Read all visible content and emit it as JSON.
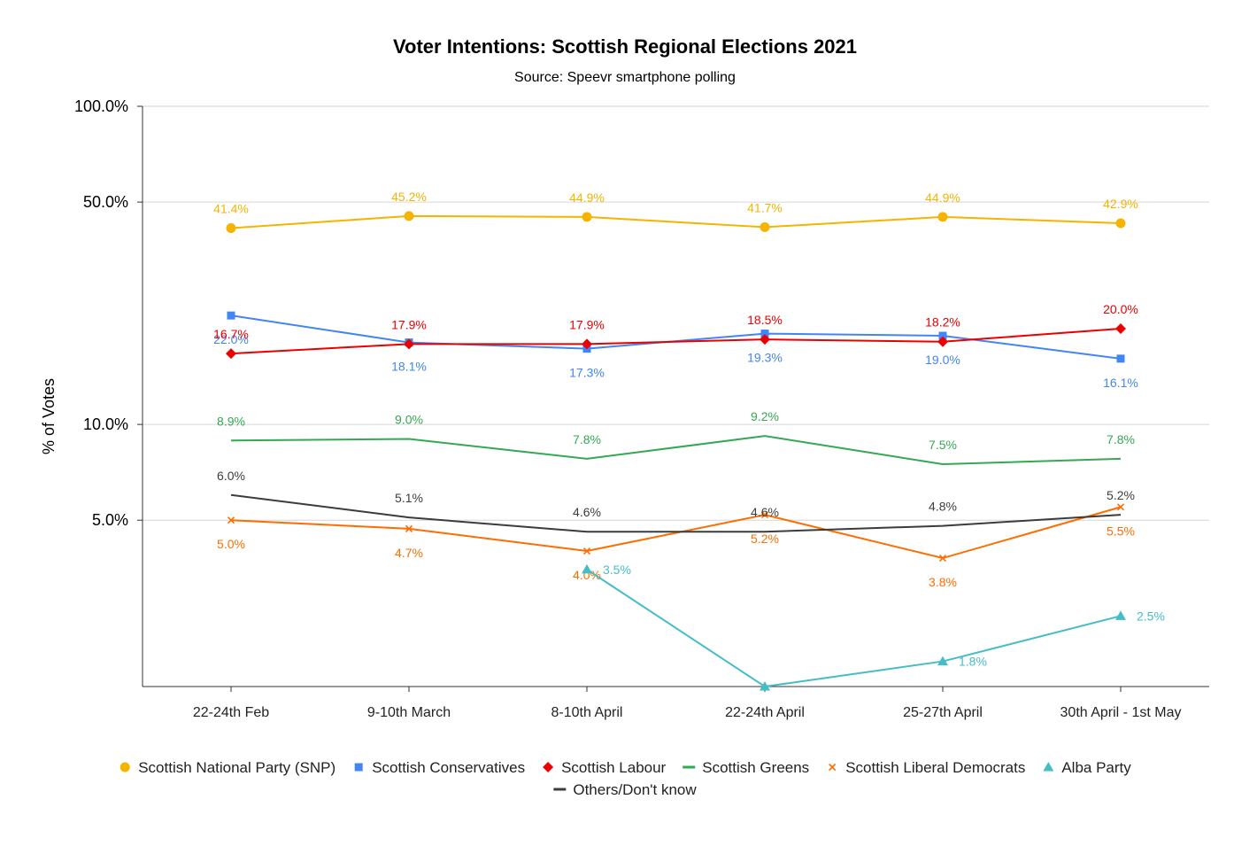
{
  "chart_data": {
    "type": "line",
    "title": "Voter Intentions: Scottish Regional Elections 2021",
    "subtitle": "Source: Speevr smartphone polling",
    "ylabel": "% of Votes",
    "xlabel": "",
    "yscale": "log",
    "ylim": [
      1.5,
      100
    ],
    "yticks": [
      {
        "value": 100,
        "label": "100.0%"
      },
      {
        "value": 50,
        "label": "50.0%"
      },
      {
        "value": 10,
        "label": "10.0%"
      },
      {
        "value": 5,
        "label": "5.0%"
      }
    ],
    "categories": [
      "22-24th Feb",
      "9-10th March",
      "8-10th April",
      "22-24th April",
      "25-27th April",
      "30th April - 1st May"
    ],
    "legend_position": "bottom",
    "series": [
      {
        "name": "Scottish National Party (SNP)",
        "color": "#f4b400",
        "marker": "circle",
        "values": [
          41.4,
          45.2,
          44.9,
          41.7,
          44.9,
          42.9
        ],
        "labels": [
          "41.4%",
          "45.2%",
          "44.9%",
          "41.7%",
          "44.9%",
          "42.9%"
        ],
        "label_pos": [
          "above",
          "above",
          "above",
          "above",
          "above",
          "above"
        ]
      },
      {
        "name": "Scottish Conservatives",
        "color": "#4285f4",
        "marker": "square",
        "values": [
          22.0,
          18.1,
          17.3,
          19.3,
          19.0,
          16.1
        ],
        "labels": [
          "22.0%",
          "18.1%",
          "17.3%",
          "19.3%",
          "19.0%",
          "16.1%"
        ],
        "label_pos": [
          "below",
          "below",
          "below",
          "below",
          "below",
          "below"
        ]
      },
      {
        "name": "Scottish Labour",
        "color": "#ea0000",
        "marker": "diamond",
        "values": [
          16.7,
          17.9,
          17.9,
          18.5,
          18.2,
          20.0
        ],
        "labels": [
          "16.7%",
          "17.9%",
          "17.9%",
          "18.5%",
          "18.2%",
          "20.0%"
        ],
        "label_pos": [
          "above",
          "above",
          "above",
          "above",
          "above",
          "above"
        ]
      },
      {
        "name": "Scottish Greens",
        "color": "#34a853",
        "marker": "line",
        "values": [
          8.9,
          9.0,
          7.8,
          9.2,
          7.5,
          7.8
        ],
        "labels": [
          "8.9%",
          "9.0%",
          "7.8%",
          "9.2%",
          "7.5%",
          "7.8%"
        ],
        "label_pos": [
          "above",
          "above",
          "above",
          "above",
          "above",
          "above"
        ]
      },
      {
        "name": "Scottish Liberal Democrats",
        "color": "#ff6d01",
        "marker": "x",
        "values": [
          5.0,
          4.7,
          4.0,
          5.2,
          3.8,
          5.5
        ],
        "labels": [
          "5.0%",
          "4.7%",
          "4.0%",
          "5.2%",
          "3.8%",
          "5.5%"
        ],
        "label_pos": [
          "below",
          "below",
          "below",
          "below",
          "below",
          "below"
        ]
      },
      {
        "name": "Alba Party",
        "color": "#46bdc6",
        "marker": "triangle",
        "values": [
          null,
          null,
          3.5,
          1.5,
          1.8,
          2.5
        ],
        "labels": [
          "",
          "",
          "3.5%",
          "",
          "1.8%",
          "2.5%"
        ],
        "label_pos": [
          "right",
          "right",
          "right",
          "right",
          "right",
          "right"
        ]
      },
      {
        "name": "Others/Don't know",
        "color": "#3c3c3c",
        "marker": "line",
        "values": [
          6.0,
          5.1,
          4.6,
          4.6,
          4.8,
          5.2
        ],
        "labels": [
          "6.0%",
          "5.1%",
          "4.6%",
          "4.6%",
          "4.8%",
          "5.2%"
        ],
        "label_pos": [
          "above",
          "above",
          "above",
          "above",
          "above",
          "above"
        ]
      }
    ]
  }
}
